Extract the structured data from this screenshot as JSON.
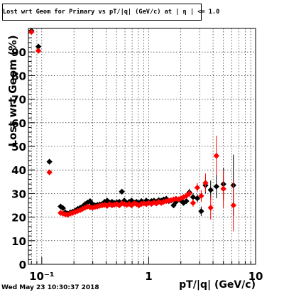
{
  "header": {
    "title": "Lost wrt Geom for Primary vs pT/|q| (GeV/c) at | η | <= 1.0"
  },
  "footer": {
    "timestamp": "Wed May 23 10:30:37 2018"
  },
  "colors": {
    "series_black": "#000000",
    "series_red": "#ff0000",
    "grid": "#000000",
    "background": "#ffffff"
  },
  "chart_data": {
    "type": "scatter",
    "title": "Lost wrt Geom for Primary vs pT/|q| (GeV/c) at | η | <= 1.0",
    "xlabel": "pT/|q| (GeV/c)",
    "ylabel": "Lost wrt Geom (%)",
    "xscale": "log",
    "xlim": [
      0.075,
      10
    ],
    "ylim": [
      0,
      100
    ],
    "grid": true,
    "legend": "none",
    "x_ticks": [
      {
        "value": 0.1,
        "label": "10⁻¹"
      },
      {
        "value": 1,
        "label": "1"
      },
      {
        "value": 10,
        "label": "10"
      }
    ],
    "y_ticks": [
      {
        "value": 0,
        "label": "0"
      },
      {
        "value": 10,
        "label": "10"
      },
      {
        "value": 20,
        "label": "20"
      },
      {
        "value": 30,
        "label": "30"
      },
      {
        "value": 40,
        "label": "40"
      },
      {
        "value": 50,
        "label": "50"
      },
      {
        "value": 60,
        "label": "60"
      },
      {
        "value": 70,
        "label": "70"
      },
      {
        "value": 80,
        "label": "80"
      },
      {
        "value": 90,
        "label": "90"
      }
    ],
    "series": [
      {
        "color": "#000000",
        "points": [
          [
            0.08,
            99.0,
            0.5
          ],
          [
            0.093,
            92.3,
            0.6
          ],
          [
            0.118,
            43.5,
            0.6
          ],
          [
            0.15,
            24.5,
            0.6
          ],
          [
            0.158,
            23.8,
            0.6
          ],
          [
            0.166,
            22.0,
            0.6
          ],
          [
            0.175,
            21.5,
            0.6
          ],
          [
            0.185,
            22.0,
            0.6
          ],
          [
            0.195,
            22.3,
            0.6
          ],
          [
            0.206,
            22.8,
            0.6
          ],
          [
            0.217,
            23.5,
            0.6
          ],
          [
            0.229,
            24.0,
            0.6
          ],
          [
            0.241,
            24.5,
            0.6
          ],
          [
            0.254,
            25.5,
            0.6
          ],
          [
            0.268,
            26.2,
            0.6
          ],
          [
            0.283,
            26.8,
            0.6
          ],
          [
            0.298,
            25.5,
            0.6
          ],
          [
            0.314,
            25.0,
            0.6
          ],
          [
            0.331,
            25.2,
            0.6
          ],
          [
            0.349,
            25.4,
            0.6
          ],
          [
            0.368,
            25.6,
            0.6
          ],
          [
            0.388,
            26.5,
            0.6
          ],
          [
            0.409,
            27.0,
            0.6
          ],
          [
            0.431,
            26.2,
            0.6
          ],
          [
            0.454,
            26.5,
            0.6
          ],
          [
            0.479,
            26.0,
            0.6
          ],
          [
            0.505,
            26.3,
            0.6
          ],
          [
            0.532,
            26.5,
            0.6
          ],
          [
            0.561,
            30.8,
            0.7
          ],
          [
            0.591,
            27.0,
            0.6
          ],
          [
            0.623,
            26.0,
            0.6
          ],
          [
            0.657,
            26.5,
            0.6
          ],
          [
            0.692,
            27.0,
            0.6
          ],
          [
            0.73,
            26.2,
            0.6
          ],
          [
            0.769,
            26.5,
            0.6
          ],
          [
            0.811,
            26.0,
            0.6
          ],
          [
            0.855,
            26.8,
            0.6
          ],
          [
            0.901,
            26.0,
            0.6
          ],
          [
            0.95,
            27.0,
            0.6
          ],
          [
            1.0,
            26.5,
            0.6
          ],
          [
            1.06,
            26.8,
            0.6
          ],
          [
            1.12,
            27.0,
            0.6
          ],
          [
            1.18,
            26.5,
            0.6
          ],
          [
            1.24,
            27.2,
            0.6
          ],
          [
            1.31,
            27.0,
            0.7
          ],
          [
            1.38,
            27.5,
            0.7
          ],
          [
            1.46,
            27.8,
            0.7
          ],
          [
            1.54,
            26.8,
            0.7
          ],
          [
            1.62,
            27.0,
            0.8
          ],
          [
            1.71,
            25.0,
            0.8
          ],
          [
            1.8,
            26.5,
            0.8
          ],
          [
            1.9,
            27.5,
            0.9
          ],
          [
            2.0,
            27.0,
            0.9
          ],
          [
            2.12,
            26.0,
            1.0
          ],
          [
            2.25,
            26.8,
            1.2
          ],
          [
            2.4,
            30.5,
            1.5
          ],
          [
            2.6,
            28.5,
            1.6
          ],
          [
            2.85,
            28.0,
            1.8
          ],
          [
            3.1,
            22.5,
            2.0
          ],
          [
            3.4,
            33.5,
            3.5
          ],
          [
            3.8,
            31.5,
            4.0
          ],
          [
            4.3,
            33.0,
            5.0
          ],
          [
            5.0,
            34.0,
            7.0
          ],
          [
            6.2,
            33.5,
            13.0
          ]
        ]
      },
      {
        "color": "#ff0000",
        "points": [
          [
            0.08,
            98.5,
            0.5
          ],
          [
            0.093,
            90.5,
            0.6
          ],
          [
            0.118,
            39.0,
            0.6
          ],
          [
            0.15,
            21.8,
            0.6
          ],
          [
            0.158,
            21.5,
            0.6
          ],
          [
            0.166,
            21.2,
            0.6
          ],
          [
            0.175,
            21.0,
            0.6
          ],
          [
            0.185,
            21.5,
            0.6
          ],
          [
            0.195,
            21.8,
            0.6
          ],
          [
            0.206,
            22.2,
            0.6
          ],
          [
            0.217,
            22.6,
            0.6
          ],
          [
            0.229,
            23.0,
            0.6
          ],
          [
            0.241,
            23.5,
            0.6
          ],
          [
            0.254,
            24.0,
            0.6
          ],
          [
            0.268,
            24.5,
            0.6
          ],
          [
            0.283,
            24.2,
            0.6
          ],
          [
            0.298,
            24.0,
            0.6
          ],
          [
            0.314,
            24.3,
            0.6
          ],
          [
            0.331,
            24.5,
            0.6
          ],
          [
            0.349,
            24.8,
            0.6
          ],
          [
            0.368,
            25.0,
            0.6
          ],
          [
            0.388,
            25.2,
            0.6
          ],
          [
            0.409,
            24.8,
            0.6
          ],
          [
            0.431,
            25.5,
            0.6
          ],
          [
            0.454,
            25.0,
            0.6
          ],
          [
            0.479,
            25.3,
            0.6
          ],
          [
            0.505,
            25.5,
            0.6
          ],
          [
            0.532,
            25.0,
            0.6
          ],
          [
            0.561,
            25.8,
            0.6
          ],
          [
            0.591,
            25.5,
            0.6
          ],
          [
            0.623,
            25.2,
            0.6
          ],
          [
            0.657,
            25.6,
            0.6
          ],
          [
            0.692,
            25.0,
            0.6
          ],
          [
            0.73,
            25.8,
            0.6
          ],
          [
            0.769,
            25.5,
            0.6
          ],
          [
            0.811,
            25.0,
            0.6
          ],
          [
            0.855,
            25.6,
            0.6
          ],
          [
            0.901,
            25.8,
            0.6
          ],
          [
            0.95,
            25.5,
            0.6
          ],
          [
            1.0,
            26.0,
            0.6
          ],
          [
            1.06,
            25.6,
            0.6
          ],
          [
            1.12,
            26.2,
            0.6
          ],
          [
            1.18,
            25.8,
            0.6
          ],
          [
            1.24,
            26.5,
            0.6
          ],
          [
            1.31,
            26.0,
            0.7
          ],
          [
            1.38,
            26.5,
            0.7
          ],
          [
            1.46,
            26.8,
            0.7
          ],
          [
            1.54,
            27.0,
            0.7
          ],
          [
            1.62,
            27.2,
            0.8
          ],
          [
            1.71,
            27.5,
            0.8
          ],
          [
            1.8,
            27.8,
            0.8
          ],
          [
            1.9,
            27.5,
            0.9
          ],
          [
            2.0,
            28.0,
            0.9
          ],
          [
            2.12,
            28.5,
            1.0
          ],
          [
            2.25,
            29.0,
            1.2
          ],
          [
            2.4,
            30.0,
            1.5
          ],
          [
            2.6,
            26.0,
            1.6
          ],
          [
            2.85,
            32.5,
            2.0
          ],
          [
            3.1,
            29.0,
            2.5
          ],
          [
            3.4,
            34.5,
            4.0
          ],
          [
            3.8,
            24.0,
            5.0
          ],
          [
            4.3,
            46.0,
            8.5
          ],
          [
            5.0,
            32.0,
            8.0
          ],
          [
            6.2,
            25.0,
            11.0
          ]
        ]
      }
    ]
  }
}
